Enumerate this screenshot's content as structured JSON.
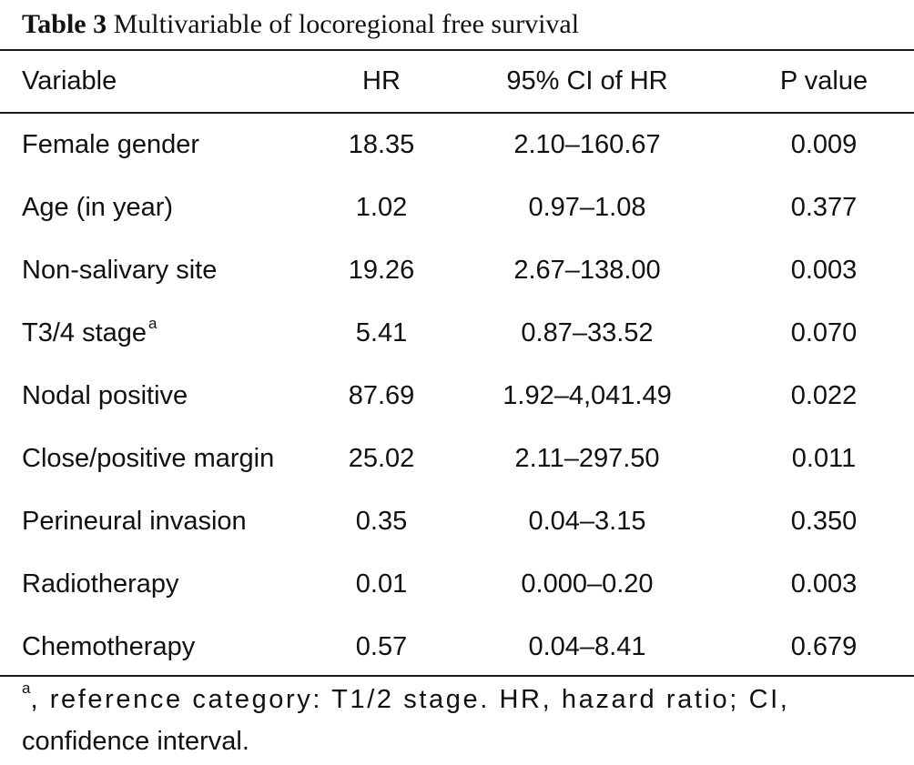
{
  "caption": {
    "label": "Table 3",
    "title": "Multivariable of locoregional free survival"
  },
  "table": {
    "headers": [
      "Variable",
      "HR",
      "95% CI of HR",
      "P value"
    ],
    "rows": [
      {
        "variable": "Female gender",
        "note": "",
        "hr": "18.35",
        "ci": "2.10–160.67",
        "p": "0.009"
      },
      {
        "variable": "Age (in year)",
        "note": "",
        "hr": "1.02",
        "ci": "0.97–1.08",
        "p": "0.377"
      },
      {
        "variable": "Non-salivary site",
        "note": "",
        "hr": "19.26",
        "ci": "2.67–138.00",
        "p": "0.003"
      },
      {
        "variable": "T3/4 stage",
        "note": "a",
        "hr": "5.41",
        "ci": "0.87–33.52",
        "p": "0.070"
      },
      {
        "variable": "Nodal positive",
        "note": "",
        "hr": "87.69",
        "ci": "1.92–4,041.49",
        "p": "0.022"
      },
      {
        "variable": "Close/positive margin",
        "note": "",
        "hr": "25.02",
        "ci": "2.11–297.50",
        "p": "0.011"
      },
      {
        "variable": "Perineural invasion",
        "note": "",
        "hr": "0.35",
        "ci": "0.04–3.15",
        "p": "0.350"
      },
      {
        "variable": "Radiotherapy",
        "note": "",
        "hr": "0.01",
        "ci": "0.000–0.20",
        "p": "0.003"
      },
      {
        "variable": "Chemotherapy",
        "note": "",
        "hr": "0.57",
        "ci": "0.04–8.41",
        "p": "0.679"
      }
    ]
  },
  "footnote": {
    "marker": "a",
    "line1": ", reference category: T1/2 stage. HR, hazard ratio; CI,",
    "line2": "confidence interval."
  }
}
